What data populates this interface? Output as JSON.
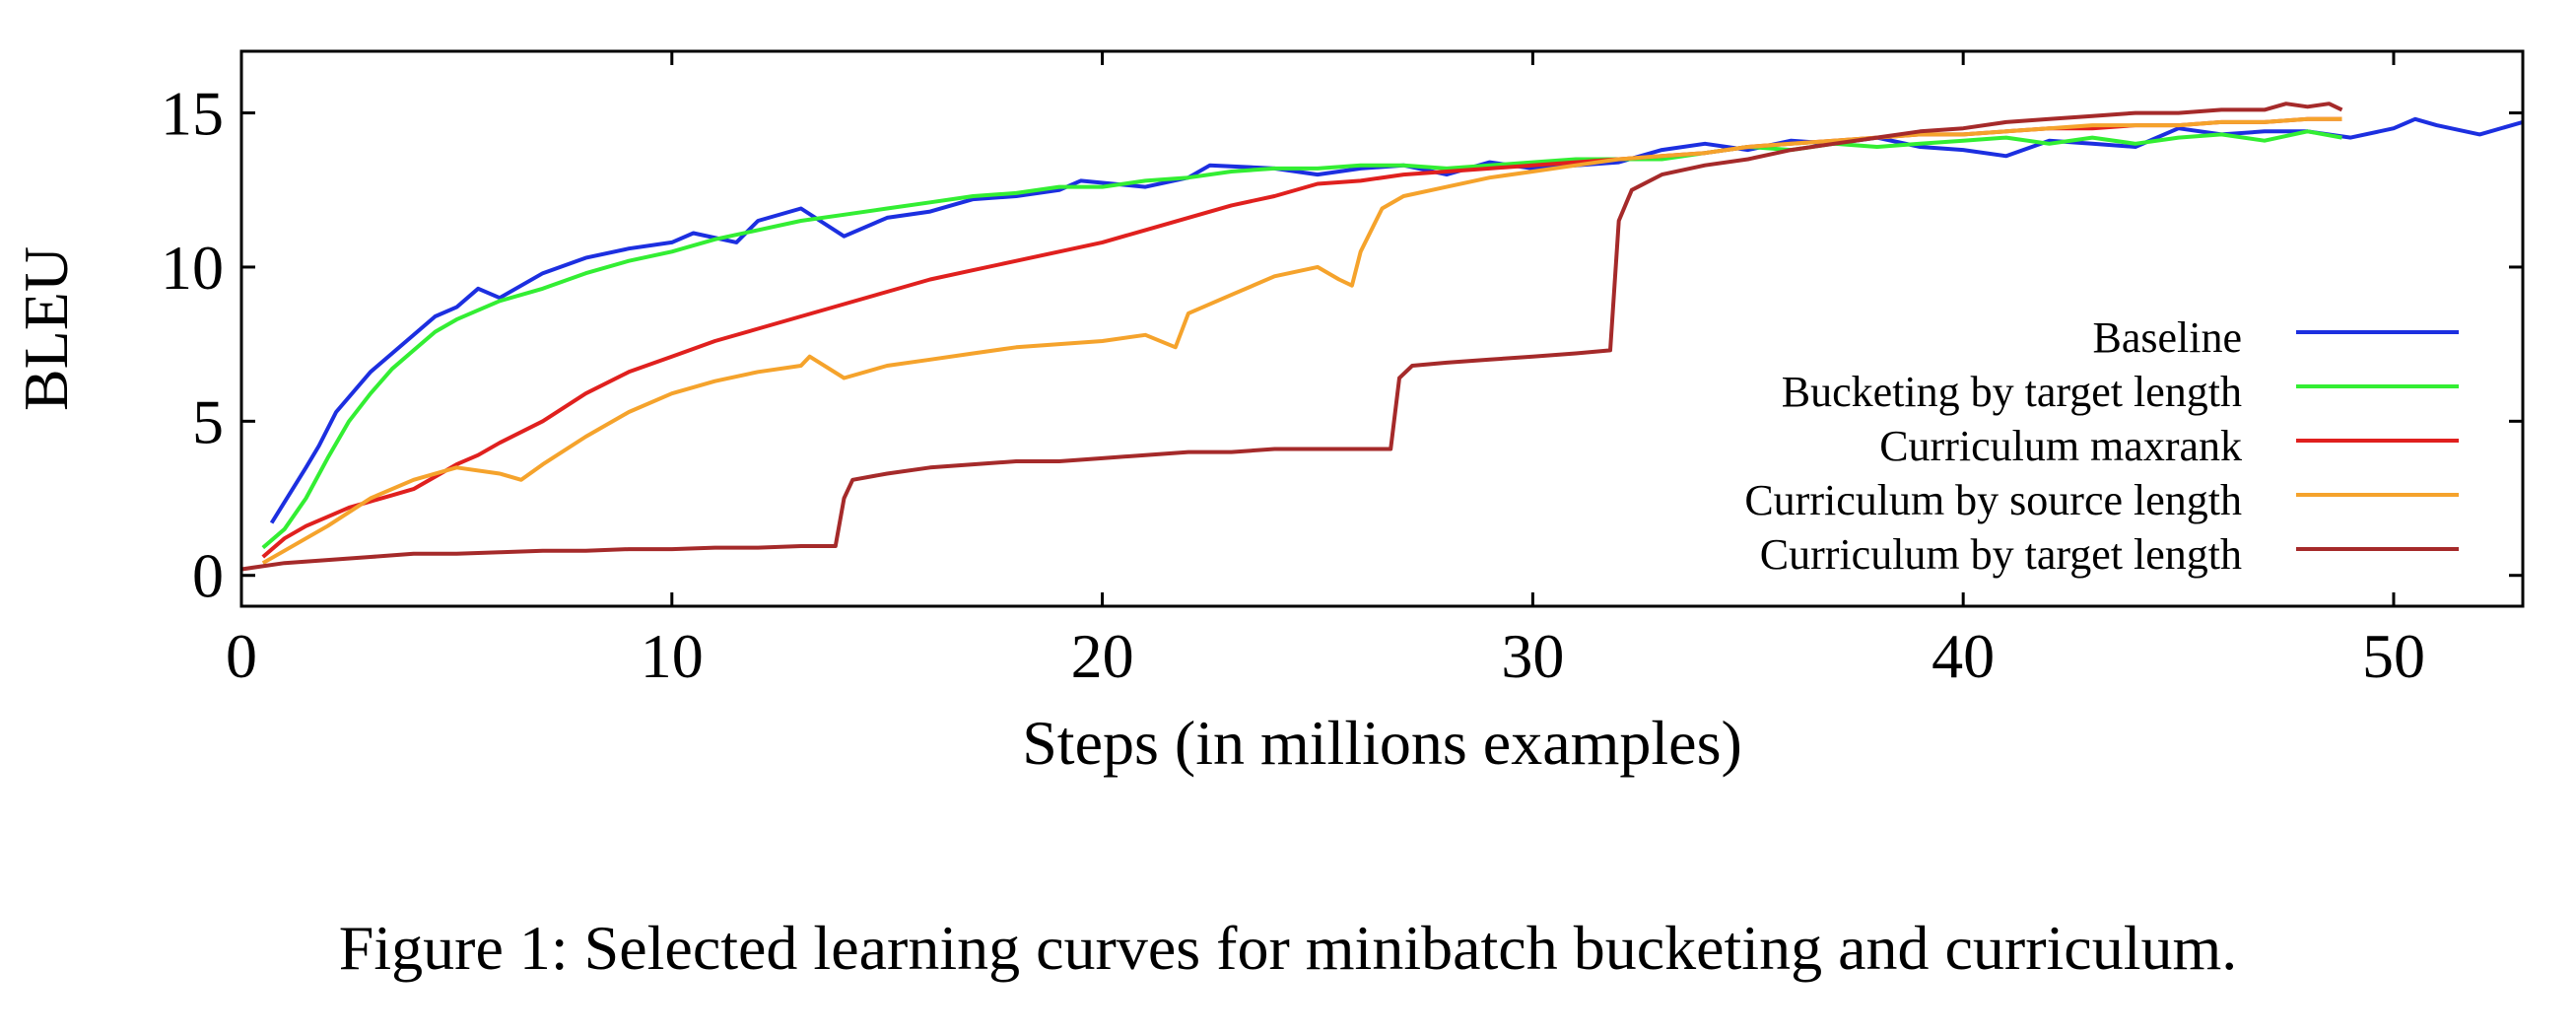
{
  "figure": {
    "caption": "Figure 1: Selected learning curves for minibatch bucketing and curriculum."
  },
  "chart_data": {
    "type": "line",
    "xlabel": "Steps (in millions examples)",
    "ylabel": "BLEU",
    "xlim": [
      0,
      53
    ],
    "ylim": [
      -1,
      17
    ],
    "xticks": [
      0,
      10,
      20,
      30,
      40,
      50
    ],
    "yticks": [
      0,
      5,
      10,
      15
    ],
    "grid": false,
    "legend_position": "right",
    "series": [
      {
        "name": "Baseline",
        "color": "#1c2fe0",
        "x": [
          0.7,
          1.5,
          1.8,
          2.2,
          3.0,
          3.5,
          4.5,
          5.0,
          5.5,
          6.0,
          7.0,
          8.0,
          9.0,
          10.0,
          10.5,
          11.5,
          12.0,
          13.0,
          14.0,
          15.0,
          16.0,
          17.0,
          18.0,
          19.0,
          19.5,
          21.0,
          22.0,
          22.5,
          24.0,
          25.0,
          26.0,
          27.0,
          28.0,
          29.0,
          30.0,
          31.0,
          32.0,
          33.0,
          34.0,
          35.0,
          36.0,
          37.0,
          38.0,
          39.0,
          40.0,
          41.0,
          42.0,
          43.0,
          44.0,
          45.0,
          46.0,
          47.0,
          48.0,
          49.0,
          50.0,
          50.5,
          51.0,
          52.0,
          53.0
        ],
        "y": [
          1.7,
          3.5,
          4.2,
          5.3,
          6.6,
          7.2,
          8.4,
          8.7,
          9.3,
          9.0,
          9.8,
          10.3,
          10.6,
          10.8,
          11.1,
          10.8,
          11.5,
          11.9,
          11.0,
          11.6,
          11.8,
          12.2,
          12.3,
          12.5,
          12.8,
          12.6,
          12.9,
          13.3,
          13.2,
          13.0,
          13.2,
          13.3,
          13.0,
          13.4,
          13.2,
          13.3,
          13.4,
          13.8,
          14.0,
          13.8,
          14.1,
          14.0,
          14.2,
          13.9,
          13.8,
          13.6,
          14.1,
          14.0,
          13.9,
          14.5,
          14.3,
          14.4,
          14.4,
          14.2,
          14.5,
          14.8,
          14.6,
          14.3,
          14.7
        ]
      },
      {
        "name": "Bucketing by target length",
        "color": "#33ee33",
        "x": [
          0.5,
          1.0,
          1.5,
          2.0,
          2.5,
          3.0,
          3.5,
          4.0,
          4.5,
          5.0,
          5.5,
          6.0,
          7.0,
          8.0,
          9.0,
          10.0,
          11.0,
          12.0,
          13.0,
          14.0,
          15.0,
          16.0,
          17.0,
          18.0,
          19.0,
          20.0,
          21.0,
          22.0,
          23.0,
          24.0,
          25.0,
          26.0,
          27.0,
          28.0,
          29.0,
          30.0,
          31.0,
          32.0,
          33.0,
          34.0,
          35.0,
          36.0,
          37.0,
          38.0,
          39.0,
          40.0,
          41.0,
          42.0,
          43.0,
          44.0,
          45.0,
          46.0,
          47.0,
          48.0,
          48.8
        ],
        "y": [
          0.9,
          1.5,
          2.5,
          3.8,
          5.0,
          5.9,
          6.7,
          7.3,
          7.9,
          8.3,
          8.6,
          8.9,
          9.3,
          9.8,
          10.2,
          10.5,
          10.9,
          11.2,
          11.5,
          11.7,
          11.9,
          12.1,
          12.3,
          12.4,
          12.6,
          12.6,
          12.8,
          12.9,
          13.1,
          13.2,
          13.2,
          13.3,
          13.3,
          13.2,
          13.3,
          13.4,
          13.5,
          13.5,
          13.5,
          13.7,
          13.9,
          13.8,
          14.0,
          13.9,
          14.0,
          14.1,
          14.2,
          14.0,
          14.2,
          14.0,
          14.2,
          14.3,
          14.1,
          14.4,
          14.2
        ]
      },
      {
        "name": "Curriculum maxrank",
        "color": "#e0201e",
        "x": [
          0.5,
          1.0,
          1.5,
          2.0,
          2.5,
          3.0,
          3.5,
          4.0,
          4.5,
          5.0,
          5.5,
          6.0,
          7.0,
          8.0,
          9.0,
          10.0,
          11.0,
          12.0,
          13.0,
          14.0,
          15.0,
          16.0,
          17.0,
          18.0,
          19.0,
          20.0,
          21.0,
          22.0,
          23.0,
          24.0,
          25.0,
          26.0,
          27.0,
          28.0,
          29.0,
          30.0,
          31.0,
          32.0,
          33.0,
          34.0,
          35.0,
          36.0,
          37.0,
          38.0,
          39.0,
          40.0,
          41.0,
          42.0,
          43.0,
          44.0,
          45.0,
          46.0,
          47.0,
          48.0,
          48.8
        ],
        "y": [
          0.6,
          1.2,
          1.6,
          1.9,
          2.2,
          2.4,
          2.6,
          2.8,
          3.2,
          3.6,
          3.9,
          4.3,
          5.0,
          5.9,
          6.6,
          7.1,
          7.6,
          8.0,
          8.4,
          8.8,
          9.2,
          9.6,
          9.9,
          10.2,
          10.5,
          10.8,
          11.2,
          11.6,
          12.0,
          12.3,
          12.7,
          12.8,
          13.0,
          13.1,
          13.2,
          13.3,
          13.4,
          13.5,
          13.6,
          13.7,
          13.9,
          14.0,
          14.1,
          14.2,
          14.3,
          14.3,
          14.4,
          14.5,
          14.5,
          14.6,
          14.6,
          14.7,
          14.7,
          14.8,
          14.8
        ]
      },
      {
        "name": "Curriculum by source length",
        "color": "#f5a32c",
        "x": [
          0.5,
          1.0,
          1.5,
          2.0,
          3.0,
          4.0,
          5.0,
          6.0,
          6.5,
          7.0,
          8.0,
          9.0,
          10.0,
          11.0,
          12.0,
          13.0,
          13.2,
          14.0,
          15.0,
          16.0,
          17.0,
          18.0,
          19.0,
          20.0,
          21.0,
          21.7,
          22.0,
          23.0,
          24.0,
          25.0,
          25.5,
          25.8,
          26.0,
          26.5,
          27.0,
          28.0,
          29.0,
          30.0,
          31.0,
          32.0,
          33.0,
          34.0,
          35.0,
          36.0,
          37.0,
          38.0,
          39.0,
          40.0,
          41.0,
          42.0,
          43.0,
          44.0,
          45.0,
          46.0,
          47.0,
          48.0,
          48.8
        ],
        "y": [
          0.4,
          0.8,
          1.2,
          1.6,
          2.5,
          3.1,
          3.5,
          3.3,
          3.1,
          3.6,
          4.5,
          5.3,
          5.9,
          6.3,
          6.6,
          6.8,
          7.1,
          6.4,
          6.8,
          7.0,
          7.2,
          7.4,
          7.5,
          7.6,
          7.8,
          7.4,
          8.5,
          9.1,
          9.7,
          10.0,
          9.6,
          9.4,
          10.5,
          11.9,
          12.3,
          12.6,
          12.9,
          13.1,
          13.3,
          13.5,
          13.6,
          13.7,
          13.9,
          14.0,
          14.1,
          14.2,
          14.3,
          14.3,
          14.4,
          14.5,
          14.6,
          14.6,
          14.6,
          14.7,
          14.7,
          14.8,
          14.8
        ]
      },
      {
        "name": "Curriculum by target length",
        "color": "#a52a2a",
        "x": [
          0.0,
          1.0,
          2.0,
          3.0,
          4.0,
          5.0,
          6.0,
          7.0,
          8.0,
          9.0,
          10.0,
          11.0,
          12.0,
          13.0,
          13.8,
          14.0,
          14.2,
          15.0,
          16.0,
          17.0,
          18.0,
          19.0,
          20.0,
          21.0,
          22.0,
          23.0,
          24.0,
          25.0,
          26.0,
          26.7,
          26.9,
          27.2,
          28.0,
          29.0,
          30.0,
          31.0,
          31.8,
          32.0,
          32.3,
          33.0,
          34.0,
          35.0,
          36.0,
          37.0,
          38.0,
          39.0,
          40.0,
          41.0,
          42.0,
          43.0,
          44.0,
          45.0,
          46.0,
          47.0,
          47.5,
          48.0,
          48.5,
          48.8
        ],
        "y": [
          0.2,
          0.4,
          0.5,
          0.6,
          0.7,
          0.7,
          0.75,
          0.8,
          0.8,
          0.85,
          0.85,
          0.9,
          0.9,
          0.95,
          0.95,
          2.5,
          3.1,
          3.3,
          3.5,
          3.6,
          3.7,
          3.7,
          3.8,
          3.9,
          4.0,
          4.0,
          4.1,
          4.1,
          4.1,
          4.1,
          6.4,
          6.8,
          6.9,
          7.0,
          7.1,
          7.2,
          7.3,
          11.5,
          12.5,
          13.0,
          13.3,
          13.5,
          13.8,
          14.0,
          14.2,
          14.4,
          14.5,
          14.7,
          14.8,
          14.9,
          15.0,
          15.0,
          15.1,
          15.1,
          15.3,
          15.2,
          15.3,
          15.1
        ]
      }
    ]
  }
}
